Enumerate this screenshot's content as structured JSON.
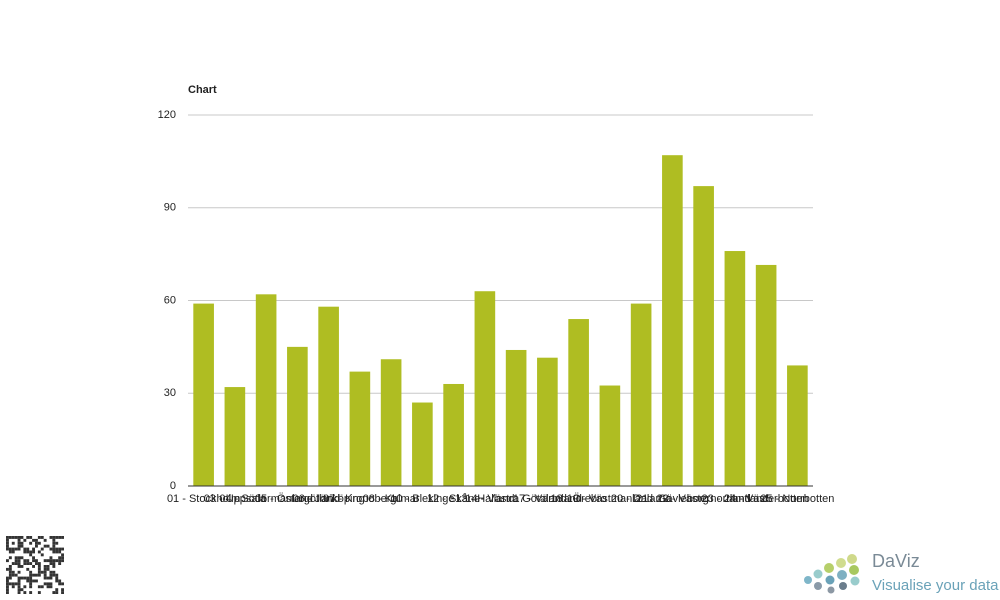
{
  "chart_data": {
    "type": "bar",
    "title": "Chart",
    "categories": [
      "01 - Stockholm",
      "03 - Uppsala",
      "04 - Södermanland",
      "05 - Östergötland",
      "06 - Jönköping",
      "07 - Kronoberg",
      "08 - Kalmar",
      "10 - Blekinge",
      "12 - Skåne",
      "13 - Halland",
      "14 - Västra Götaland",
      "17 - Värmland",
      "18 - Örebro",
      "19 - Västmanland",
      "20 - Dalarna",
      "21 - Gävleborg",
      "22 - Västernorrland",
      "23 - Jämtland",
      "24 - Västerbotten",
      "25 - Norrbotten"
    ],
    "values": [
      59,
      32,
      62,
      45,
      58,
      37,
      41,
      27,
      33,
      63,
      44,
      41.5,
      54,
      32.5,
      59,
      107,
      97,
      76,
      71.5,
      39
    ],
    "color": "#afbd22",
    "ylim": [
      0,
      120
    ],
    "yticks": [
      0,
      30,
      60,
      90,
      120
    ],
    "grid": true
  },
  "branding": {
    "name": "DaViz",
    "tagline": "Visualise your data"
  }
}
